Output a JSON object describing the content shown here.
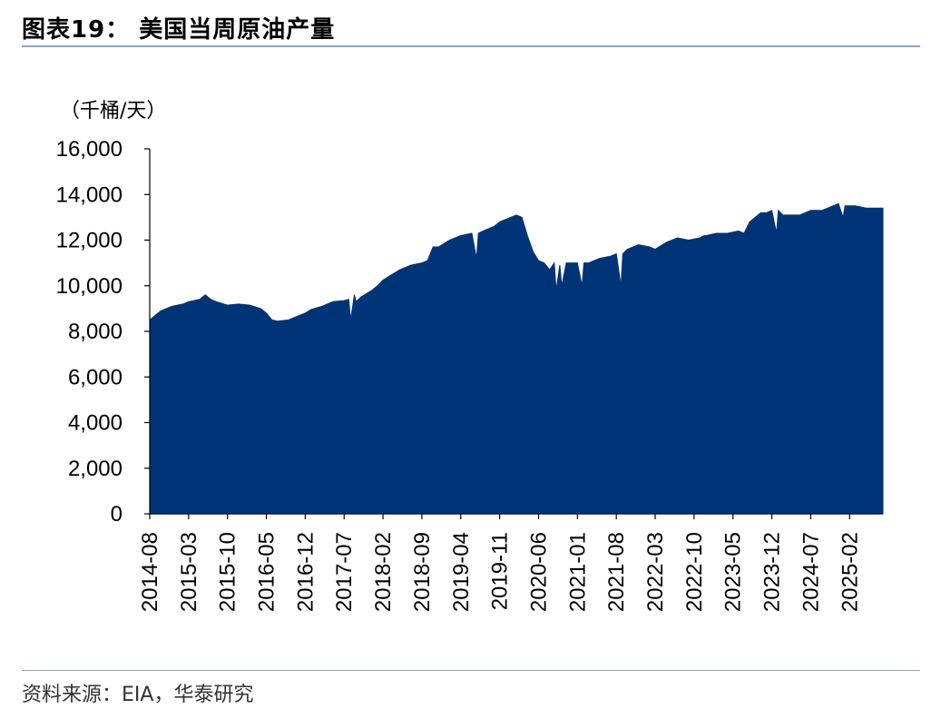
{
  "header": {
    "title": "图表19：  美国当周原油产量"
  },
  "footer": {
    "source": "资料来源：EIA，华泰研究"
  },
  "chart_data": {
    "type": "area",
    "unit_label": "（千桶/天）",
    "xlabel": "",
    "ylabel": "",
    "ylim": [
      0,
      16000
    ],
    "y_ticks": [
      0,
      2000,
      4000,
      6000,
      8000,
      10000,
      12000,
      14000,
      16000
    ],
    "y_tick_labels": [
      "0",
      "2,000",
      "4,000",
      "6,000",
      "8,000",
      "10,000",
      "12,000",
      "14,000",
      "16,000"
    ],
    "x_range": [
      "2014-08",
      "2025-08"
    ],
    "x_tick_labels": [
      "2014-08",
      "2015-03",
      "2015-10",
      "2016-05",
      "2016-12",
      "2017-07",
      "2018-02",
      "2018-09",
      "2019-04",
      "2019-11",
      "2020-06",
      "2021-01",
      "2021-08",
      "2022-03",
      "2022-10",
      "2023-05",
      "2023-12",
      "2024-07",
      "2025-02"
    ],
    "grid": false,
    "legend": "none",
    "fill_color": "#003477",
    "series": [
      {
        "x": [
          "2014-08",
          "2014-09",
          "2014-10",
          "2014-12",
          "2015-02",
          "2015-03",
          "2015-05",
          "2015-06",
          "2015-07",
          "2015-08",
          "2015-10",
          "2015-12",
          "2016-02",
          "2016-04",
          "2016-05",
          "2016-06",
          "2016-07",
          "2016-09",
          "2016-11",
          "2016-12",
          "2017-01",
          "2017-03",
          "2017-05",
          "2017-07",
          "2017-08",
          "2017-08",
          "2017-09",
          "2017-09",
          "2017-10",
          "2017-12",
          "2018-01",
          "2018-02",
          "2018-03",
          "2018-05",
          "2018-07",
          "2018-09",
          "2018-10",
          "2018-11",
          "2018-12",
          "2019-02",
          "2019-03",
          "2019-04",
          "2019-06",
          "2019-07",
          "2019-07",
          "2019-08",
          "2019-10",
          "2019-11",
          "2019-12",
          "2020-02",
          "2020-03",
          "2020-04",
          "2020-05",
          "2020-06",
          "2020-07",
          "2020-08",
          "2020-09",
          "2020-09",
          "2020-10",
          "2020-10",
          "2020-11",
          "2020-12",
          "2021-01",
          "2021-02",
          "2021-02",
          "2021-03",
          "2021-05",
          "2021-07",
          "2021-08",
          "2021-09",
          "2021-09",
          "2021-10",
          "2021-12",
          "2022-02",
          "2022-03",
          "2022-05",
          "2022-07",
          "2022-09",
          "2022-11",
          "2022-12",
          "2022-12",
          "2023-02",
          "2023-04",
          "2023-06",
          "2023-07",
          "2023-08",
          "2023-10",
          "2023-11",
          "2023-12",
          "2024-01",
          "2024-01",
          "2024-02",
          "2024-03",
          "2024-05",
          "2024-07",
          "2024-09",
          "2024-10",
          "2024-11",
          "2024-12",
          "2025-01",
          "2025-01",
          "2025-03",
          "2025-05",
          "2025-07",
          "2025-08"
        ],
        "values": [
          8500,
          8700,
          8900,
          9100,
          9200,
          9300,
          9400,
          9600,
          9400,
          9300,
          9150,
          9200,
          9150,
          9000,
          8800,
          8500,
          8450,
          8500,
          8700,
          8800,
          8950,
          9100,
          9300,
          9350,
          9400,
          8500,
          9600,
          9300,
          9500,
          9800,
          10000,
          10250,
          10400,
          10700,
          10900,
          11000,
          11100,
          11700,
          11700,
          12000,
          12100,
          12200,
          12300,
          11200,
          12300,
          12400,
          12600,
          12800,
          12900,
          13100,
          13000,
          12200,
          11500,
          11100,
          11000,
          10700,
          11000,
          9800,
          10900,
          10000,
          11000,
          11000,
          11000,
          10000,
          11000,
          11000,
          11200,
          11300,
          11400,
          10000,
          11400,
          11600,
          11800,
          11700,
          11600,
          11900,
          12100,
          12000,
          12100,
          12200,
          12200,
          12300,
          12300,
          12400,
          12300,
          12800,
          13200,
          13200,
          13300,
          12300,
          13300,
          13100,
          13100,
          13100,
          13300,
          13300,
          13400,
          13500,
          13600,
          13000,
          13500,
          13500,
          13400,
          13400,
          13400
        ]
      }
    ]
  }
}
